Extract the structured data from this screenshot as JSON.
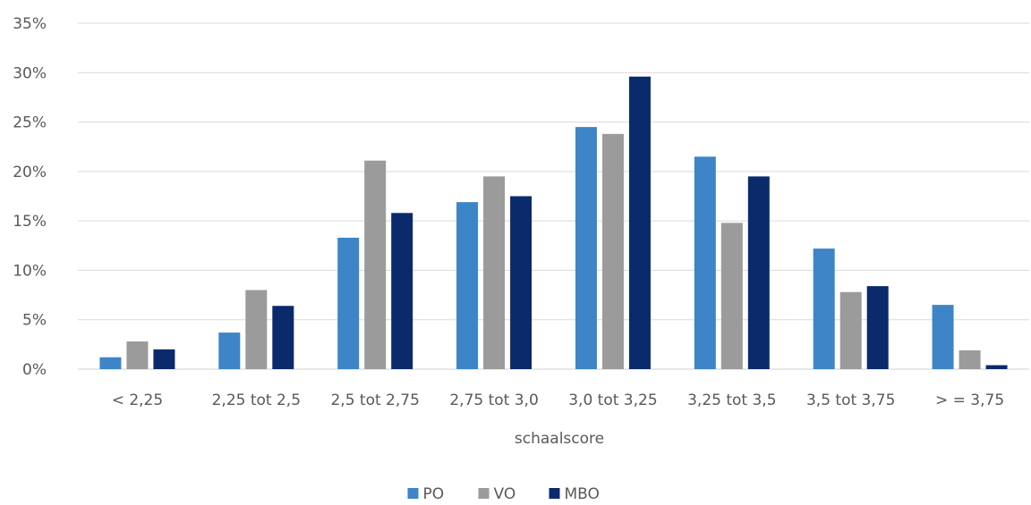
{
  "chart_data": {
    "type": "bar",
    "categories": [
      "< 2,25",
      "2,25 tot 2,5",
      "2,5 tot 2,75",
      "2,75 tot 3,0",
      "3,0 tot 3,25",
      "3,25 tot 3,5",
      "3,5 tot 3,75",
      "> = 3,75"
    ],
    "series": [
      {
        "name": "PO",
        "color": "#3d85c6",
        "values": [
          1.2,
          3.7,
          13.3,
          16.9,
          24.5,
          21.5,
          12.2,
          6.5
        ]
      },
      {
        "name": "VO",
        "color": "#9b9b9b",
        "values": [
          2.8,
          8.0,
          21.1,
          19.5,
          23.8,
          14.8,
          7.8,
          1.9
        ]
      },
      {
        "name": "MBO",
        "color": "#0a2a6b",
        "values": [
          2.0,
          6.4,
          15.8,
          17.5,
          29.6,
          19.5,
          8.4,
          0.4
        ]
      }
    ],
    "yticks": [
      "0%",
      "5%",
      "10%",
      "15%",
      "20%",
      "25%",
      "30%",
      "35%"
    ],
    "ylim": [
      0,
      35
    ],
    "xlabel": "schaalscore",
    "ylabel": "",
    "title": "",
    "grid": true,
    "legend_position": "bottom"
  }
}
